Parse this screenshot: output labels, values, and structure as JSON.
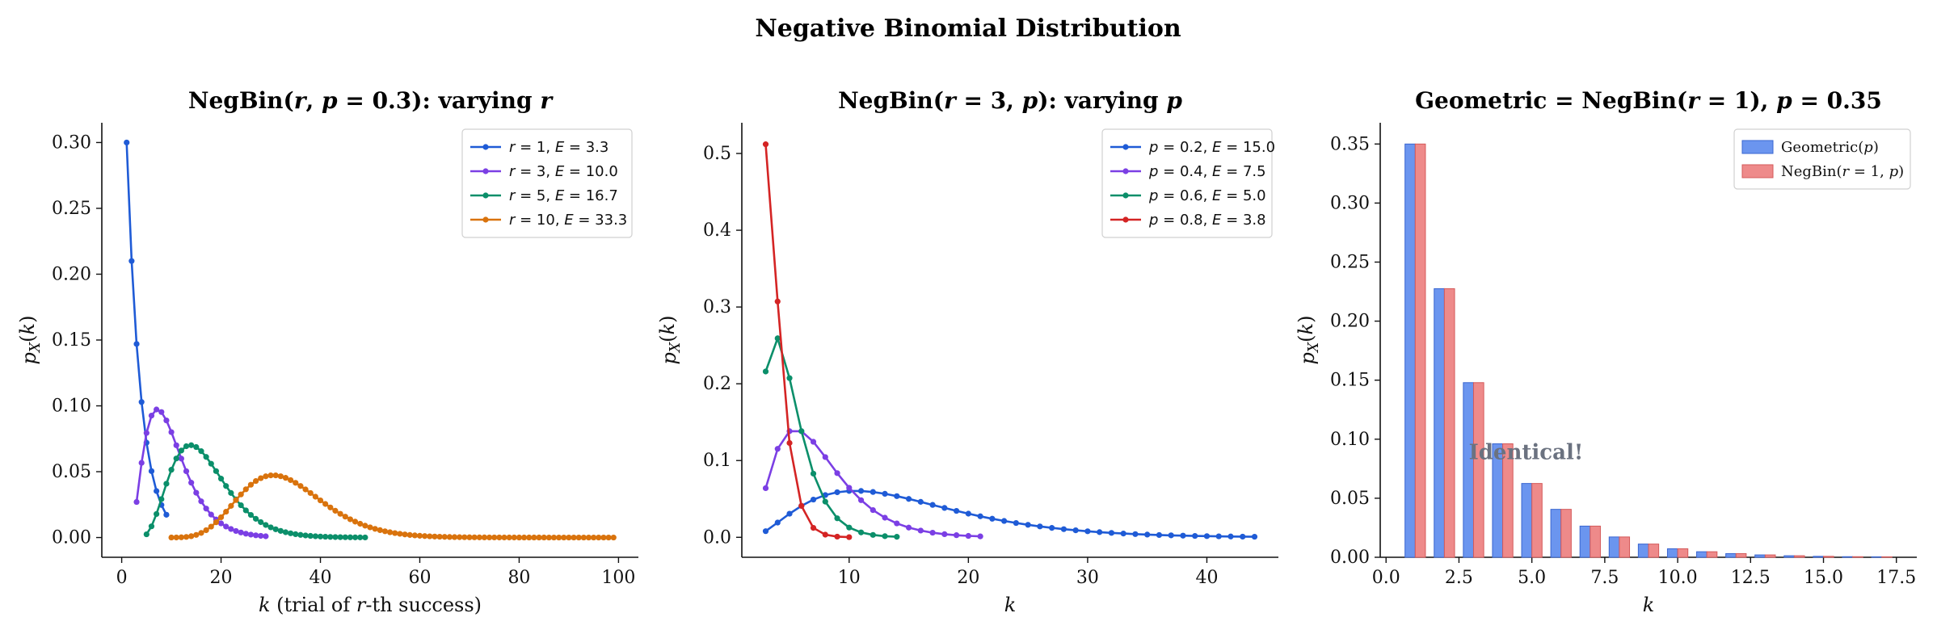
{
  "suptitle": "Negative Binomial Distribution",
  "chart_data": [
    {
      "type": "line",
      "title": "NegBin(r, p = 0.3): varying r",
      "xlabel": "k (trial of r-th success)",
      "ylabel": "p_X(k)",
      "xlim": [
        -4,
        104
      ],
      "ylim": [
        -0.015,
        0.315
      ],
      "xticks": [
        0,
        20,
        40,
        60,
        80,
        100
      ],
      "yticks": [
        0.0,
        0.05,
        0.1,
        0.15,
        0.2,
        0.25,
        0.3
      ],
      "ytick_labels": [
        "0.00",
        "0.05",
        "0.10",
        "0.15",
        "0.20",
        "0.25",
        "0.30"
      ],
      "legend_position": "top-right",
      "p": 0.3,
      "series": [
        {
          "name": "r = 1, E = 3.3",
          "r": 1,
          "k_min": 1,
          "k_max": 9,
          "color": "#1f5bd6"
        },
        {
          "name": "r = 3, E = 10.0",
          "r": 3,
          "k_min": 3,
          "k_max": 29,
          "color": "#7b3fe4"
        },
        {
          "name": "r = 5, E = 16.7",
          "r": 5,
          "k_min": 5,
          "k_max": 49,
          "color": "#0b8f6a"
        },
        {
          "name": "r = 10, E = 33.3",
          "r": 10,
          "k_min": 10,
          "k_max": 99,
          "color": "#d9730d"
        }
      ]
    },
    {
      "type": "line",
      "title": "NegBin(r = 3, p): varying p",
      "xlabel": "k",
      "ylabel": "p_X(k)",
      "xlim": [
        1.0,
        46.0
      ],
      "ylim": [
        -0.026,
        0.54
      ],
      "xticks": [
        10,
        20,
        30,
        40
      ],
      "yticks": [
        0.0,
        0.1,
        0.2,
        0.3,
        0.4,
        0.5
      ],
      "ytick_labels": [
        "0.0",
        "0.1",
        "0.2",
        "0.3",
        "0.4",
        "0.5"
      ],
      "legend_position": "top-right",
      "r": 3,
      "series": [
        {
          "name": "p = 0.2, E = 15.0",
          "p": 0.2,
          "k_min": 3,
          "k_max": 44,
          "color": "#1f5bd6"
        },
        {
          "name": "p = 0.4, E = 7.5",
          "p": 0.4,
          "k_min": 3,
          "k_max": 21,
          "color": "#7b3fe4"
        },
        {
          "name": "p = 0.6, E = 5.0",
          "p": 0.6,
          "k_min": 3,
          "k_max": 14,
          "color": "#0b8f6a"
        },
        {
          "name": "p = 0.8, E = 3.8",
          "p": 0.8,
          "k_min": 3,
          "k_max": 10,
          "color": "#d42424"
        }
      ]
    },
    {
      "type": "bar",
      "title": "Geometric = NegBin(r = 1), p = 0.35",
      "xlabel": "k",
      "ylabel": "p_X(k)",
      "xlim": [
        -0.2,
        18.2
      ],
      "ylim": [
        0.0,
        0.368
      ],
      "xticks": [
        0.0,
        2.5,
        5.0,
        7.5,
        10.0,
        12.5,
        15.0,
        17.5
      ],
      "xtick_labels": [
        "0.0",
        "2.5",
        "5.0",
        "7.5",
        "10.0",
        "12.5",
        "15.0",
        "17.5"
      ],
      "yticks": [
        0.0,
        0.05,
        0.1,
        0.15,
        0.2,
        0.25,
        0.3,
        0.35
      ],
      "ytick_labels": [
        "0.00",
        "0.05",
        "0.10",
        "0.15",
        "0.20",
        "0.25",
        "0.30",
        "0.35"
      ],
      "legend_position": "top-right",
      "annotation": "Identical!",
      "annotation_at": [
        4.8,
        0.083
      ],
      "p": 0.35,
      "categories": [
        1,
        2,
        3,
        4,
        5,
        6,
        7,
        8,
        9,
        10,
        11,
        12,
        13,
        14,
        15,
        16,
        17
      ],
      "series": [
        {
          "name": "Geometric(p)",
          "color": "#6b95ef",
          "values": [
            0.35,
            0.2275,
            0.1479,
            0.0961,
            0.0625,
            0.0406,
            0.0264,
            0.0172,
            0.0112,
            0.0072,
            0.0047,
            0.0031,
            0.002,
            0.0013,
            0.0008,
            0.0005,
            0.0004
          ]
        },
        {
          "name": "NegBin(r = 1, p)",
          "color": "#ee8a8a",
          "values": [
            0.35,
            0.2275,
            0.1479,
            0.0961,
            0.0625,
            0.0406,
            0.0264,
            0.0172,
            0.0112,
            0.0072,
            0.0047,
            0.0031,
            0.002,
            0.0013,
            0.0008,
            0.0005,
            0.0004
          ]
        }
      ]
    }
  ]
}
